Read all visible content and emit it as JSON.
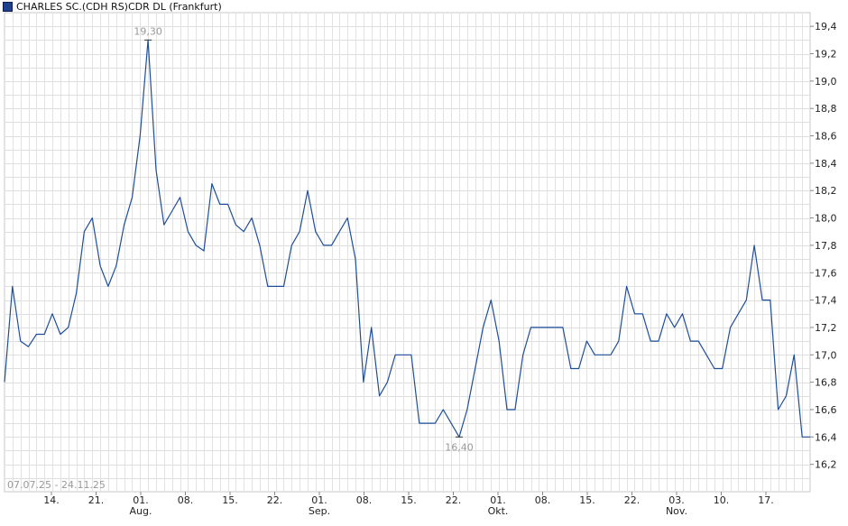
{
  "chart_data": {
    "type": "line",
    "title": "CHARLES SC.(CDH RS)CDR DL (Frankfurt)",
    "date_range": "07.07.25 - 24.11.25",
    "line_color": "#1f4e99",
    "grid": true,
    "legend": "top-left",
    "ylim": [
      16.0,
      19.5
    ],
    "yticks": [
      "16,2",
      "16,4",
      "16,6",
      "16,8",
      "17,0",
      "17,2",
      "17,4",
      "17,6",
      "17,8",
      "18,0",
      "18,2",
      "18,4",
      "18,6",
      "18,8",
      "19,0",
      "19,2",
      "19,4"
    ],
    "xticks": [
      {
        "day": "14.",
        "month": ""
      },
      {
        "day": "21.",
        "month": ""
      },
      {
        "day": "01.",
        "month": "Aug."
      },
      {
        "day": "08.",
        "month": ""
      },
      {
        "day": "15.",
        "month": ""
      },
      {
        "day": "22.",
        "month": ""
      },
      {
        "day": "01.",
        "month": "Sep."
      },
      {
        "day": "08.",
        "month": ""
      },
      {
        "day": "15.",
        "month": ""
      },
      {
        "day": "22.",
        "month": ""
      },
      {
        "day": "01.",
        "month": "Okt."
      },
      {
        "day": "08.",
        "month": ""
      },
      {
        "day": "15.",
        "month": ""
      },
      {
        "day": "22.",
        "month": ""
      },
      {
        "day": "03.",
        "month": "Nov."
      },
      {
        "day": "10.",
        "month": ""
      },
      {
        "day": "17.",
        "month": ""
      }
    ],
    "annotations": [
      {
        "label": "19,30",
        "type": "high"
      },
      {
        "label": "16,40",
        "type": "low"
      }
    ],
    "series": [
      {
        "values": [
          16.8,
          17.5,
          17.1,
          17.06,
          17.15,
          17.15,
          17.3,
          17.15,
          17.2,
          17.45,
          17.9,
          18.0,
          17.65,
          17.5,
          17.65,
          17.95,
          18.15,
          18.6,
          19.3,
          18.35,
          17.95,
          18.05,
          18.15,
          17.9,
          17.8,
          17.76,
          18.25,
          18.1,
          18.1,
          17.95,
          17.9,
          18.0,
          17.8,
          17.5,
          17.5,
          17.5,
          17.8,
          17.9,
          18.2,
          17.9,
          17.8,
          17.8,
          17.9,
          18.0,
          17.7,
          16.8,
          17.2,
          16.7,
          16.8,
          17.0,
          17.0,
          17.0,
          16.5,
          16.5,
          16.5,
          16.6,
          16.5,
          16.4,
          16.6,
          16.9,
          17.2,
          17.4,
          17.1,
          16.6,
          16.6,
          17.0,
          17.2,
          17.2,
          17.2,
          17.2,
          17.2,
          16.9,
          16.9,
          17.1,
          17.0,
          17.0,
          17.0,
          17.1,
          17.5,
          17.3,
          17.3,
          17.1,
          17.1,
          17.3,
          17.2,
          17.3,
          17.1,
          17.1,
          17.0,
          16.9,
          16.9,
          17.2,
          17.3,
          17.4,
          17.8,
          17.4,
          17.4,
          16.6,
          16.7,
          17.0,
          16.4,
          16.4
        ]
      }
    ]
  }
}
